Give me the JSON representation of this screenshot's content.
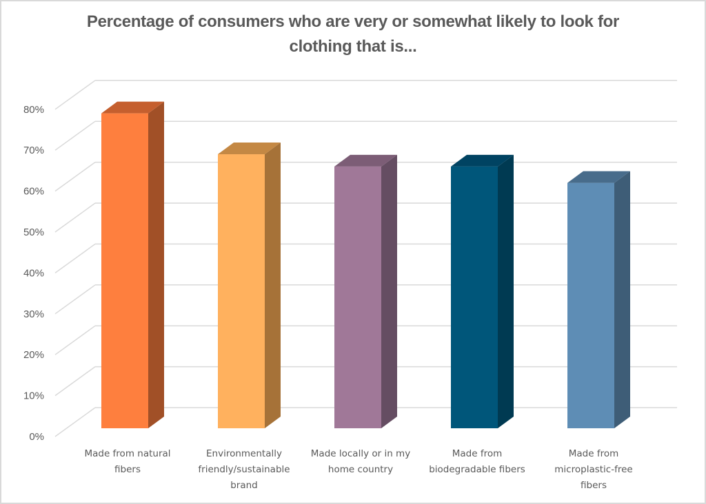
{
  "chart_data": {
    "type": "bar",
    "style": "3d-column",
    "title": "Percentage of consumers who are very or somewhat likely to look for clothing that is...",
    "title_lines": [
      "Percentage of consumers who are very or somewhat likely to look for",
      "clothing that is..."
    ],
    "xlabel": "",
    "ylabel": "",
    "categories": [
      "Made from natural fibers",
      "Environmentally friendly/sustainable brand",
      "Made locally or in my home country",
      "Made from biodegradable fibers",
      "Made from microplastic-free fibers"
    ],
    "category_label_lines": [
      [
        "Made from natural",
        "fibers"
      ],
      [
        "Environmentally",
        "friendly/sustainable",
        "brand"
      ],
      [
        "Made locally or in my",
        "home country"
      ],
      [
        "Made from",
        "biodegradable fibers"
      ],
      [
        "Made from",
        "microplastic-free",
        "fibers"
      ]
    ],
    "values": [
      77,
      67,
      64,
      64,
      60
    ],
    "value_unit": "%",
    "ylim": [
      0,
      80
    ],
    "yticks": [
      0,
      10,
      20,
      30,
      40,
      50,
      60,
      70,
      80
    ],
    "ytick_labels": [
      "0%",
      "10%",
      "20%",
      "30%",
      "40%",
      "50%",
      "60%",
      "70%",
      "80%"
    ],
    "grid": true,
    "legend": "none",
    "bar_colors": [
      {
        "front": "#FE7F3E",
        "top": "#C55F2E",
        "side": "#A15027"
      },
      {
        "front": "#FFB15E",
        "top": "#C48844",
        "side": "#A67238"
      },
      {
        "front": "#A07898",
        "top": "#7C5D76",
        "side": "#654D62"
      },
      {
        "front": "#00567A",
        "top": "#004362",
        "side": "#003A52"
      },
      {
        "front": "#5E8DB5",
        "top": "#486C8B",
        "side": "#3E5D77"
      }
    ],
    "gridline_color": "#d9d9d9",
    "text_color": "#595959"
  }
}
